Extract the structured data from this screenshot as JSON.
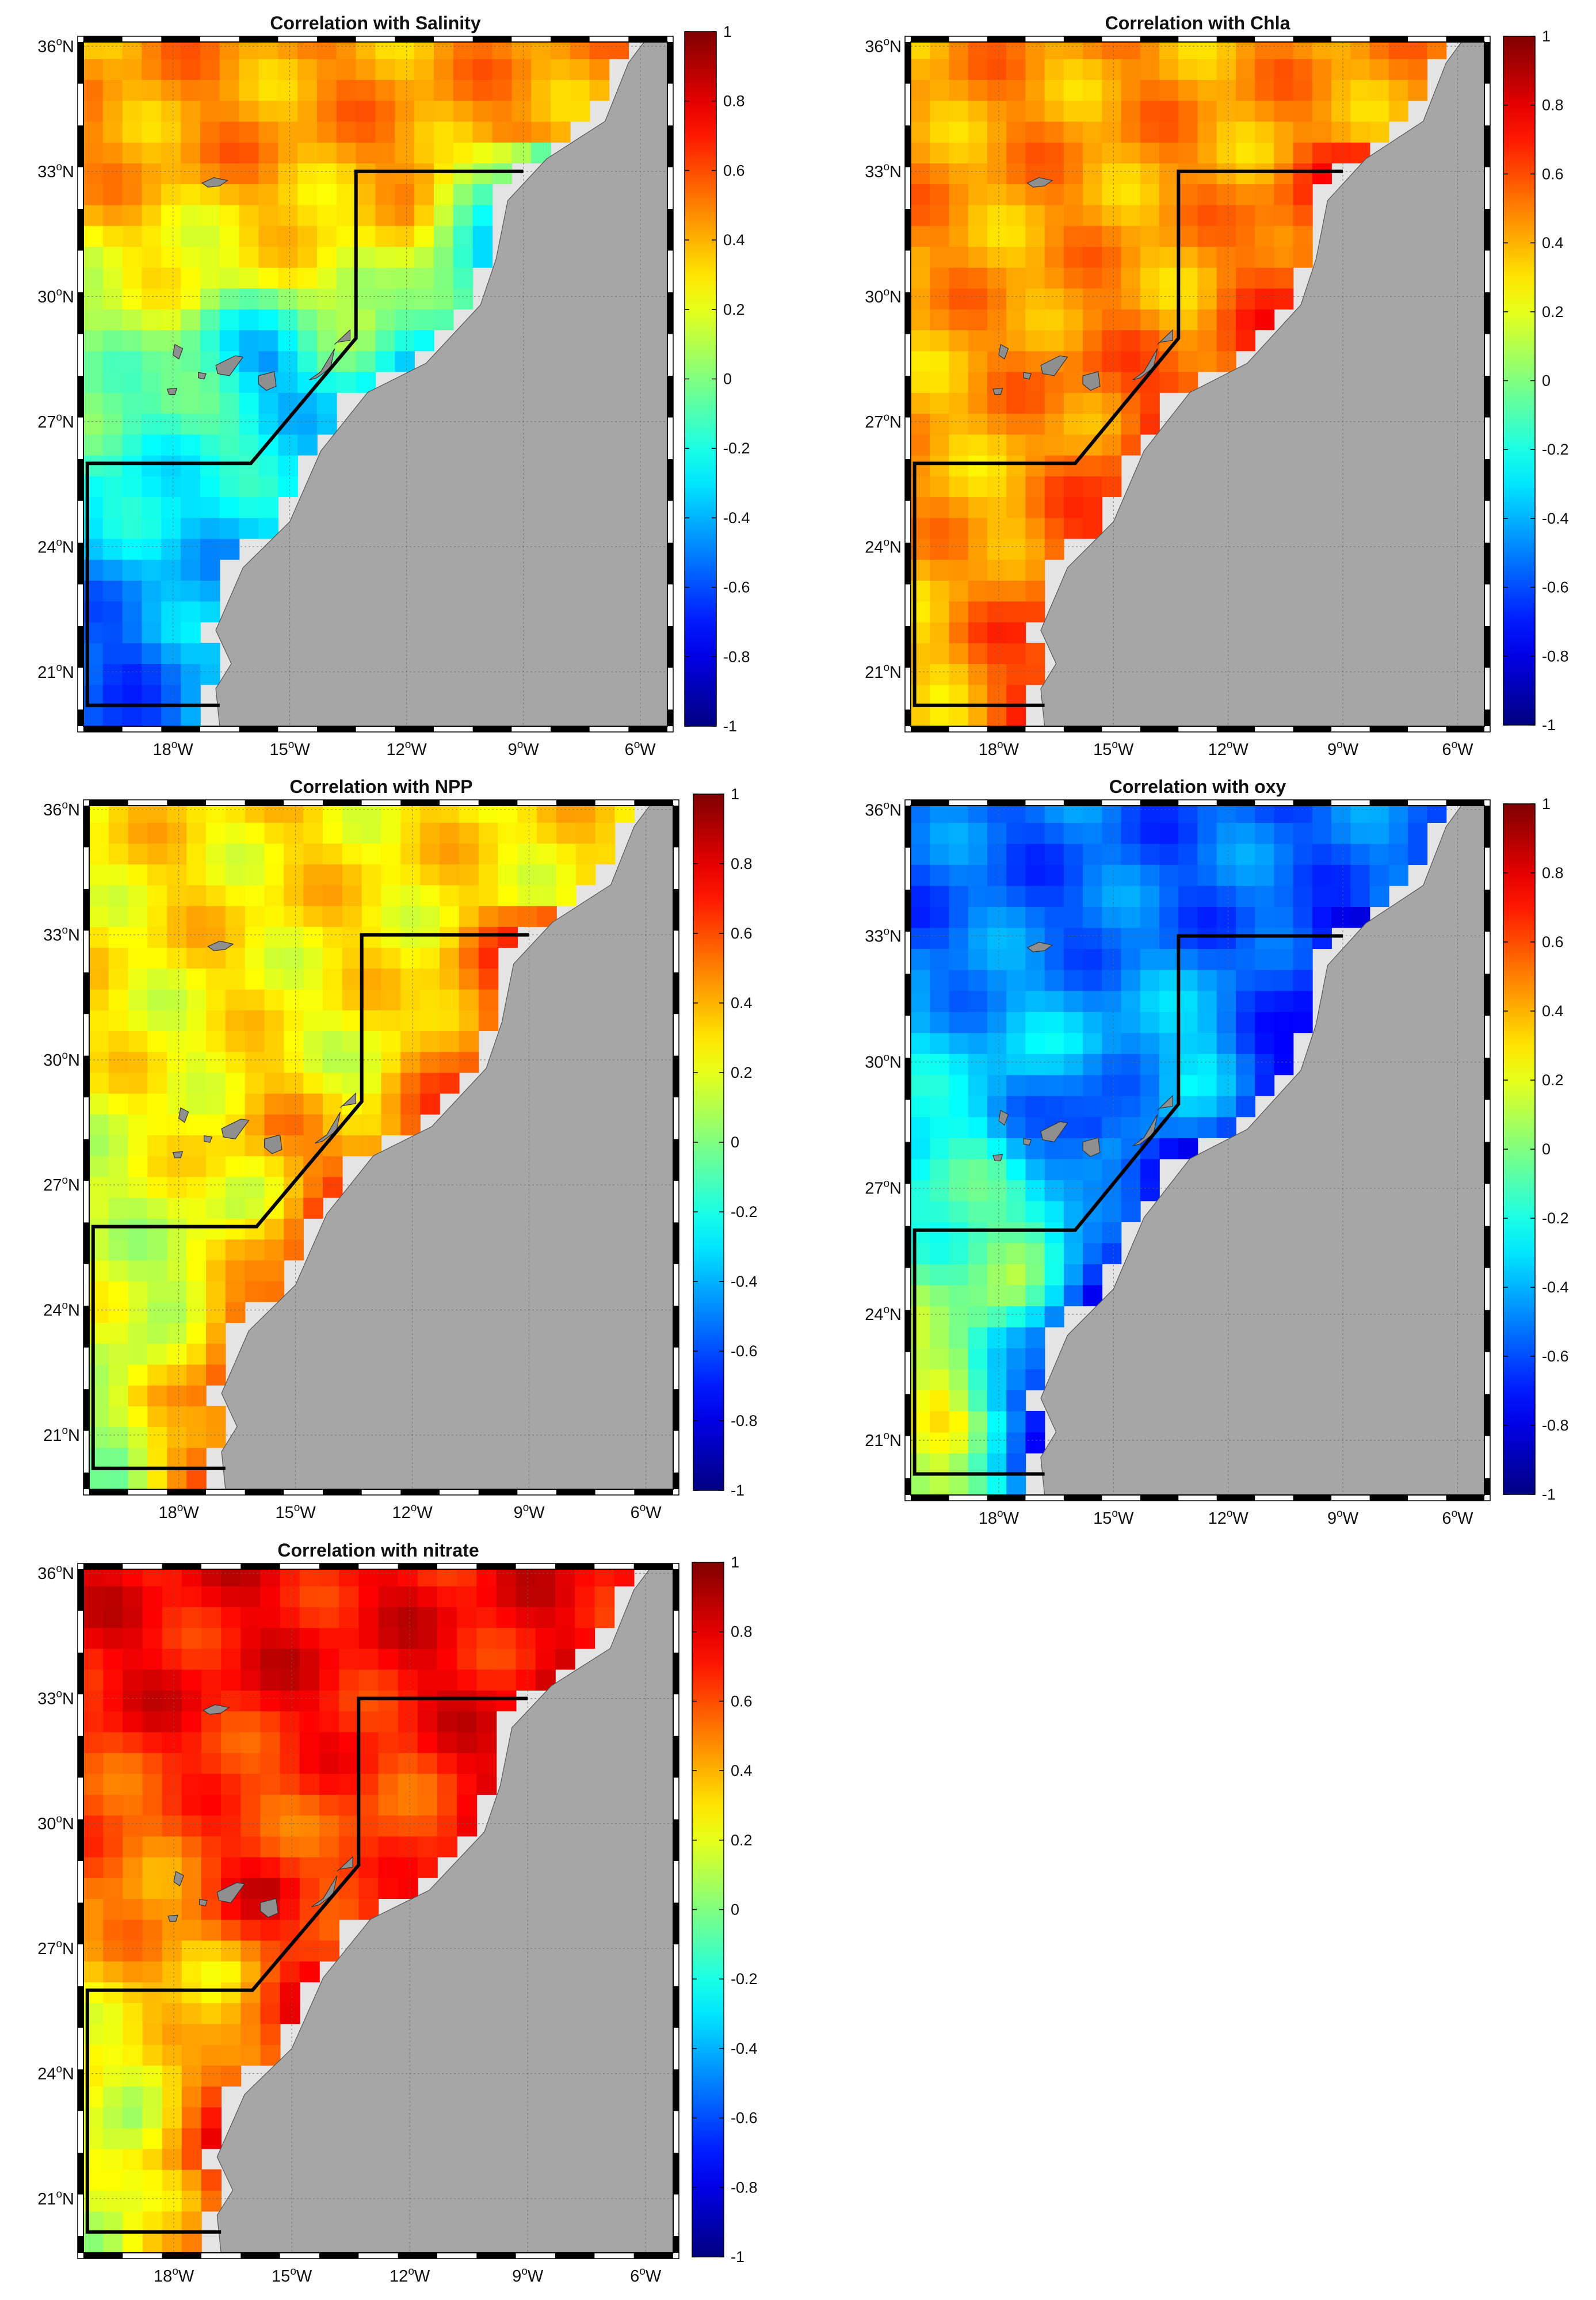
{
  "figure": {
    "panels": [
      {
        "id": "salinity",
        "title": "Correlation with Salinity",
        "pattern": {
          "north_value": 0.45,
          "south_value": -0.6,
          "coastal_value": -0.35,
          "islands_value": -0.55
        }
      },
      {
        "id": "chla",
        "title": "Correlation with Chla",
        "pattern": {
          "north_value": 0.45,
          "south_value": 0.4,
          "coastal_value": 0.7,
          "islands_value": 0.6
        }
      },
      {
        "id": "npp",
        "title": "Correlation with NPP",
        "pattern": {
          "north_value": 0.3,
          "south_value": 0.1,
          "coastal_value": 0.7,
          "islands_value": 0.5
        }
      },
      {
        "id": "oxy",
        "title": "Correlation with oxy",
        "pattern": {
          "north_value": -0.55,
          "south_value": 0.2,
          "coastal_value": -0.85,
          "islands_value": -0.9
        }
      },
      {
        "id": "nitrate",
        "title": "Correlation with nitrate",
        "pattern": {
          "north_value": 0.75,
          "south_value": 0.1,
          "coastal_value": 0.8,
          "islands_value": 0.85
        }
      }
    ],
    "lat_ticks": [
      "36",
      "33",
      "30",
      "27",
      "24",
      "21"
    ],
    "lat_suffix": "N",
    "lon_ticks": [
      "18",
      "15",
      "12",
      "9",
      "6"
    ],
    "lon_suffix": "W",
    "degree_symbol": "o",
    "colorbar_ticks": [
      "1",
      "0.8",
      "0.6",
      "0.4",
      "0.2",
      "0",
      "-0.2",
      "-0.4",
      "-0.6",
      "-0.8",
      "-1"
    ],
    "colorbar_range": [
      -1,
      1
    ],
    "colormap": "jet",
    "map_extent": {
      "lon": [
        -20.3,
        -5.3
      ],
      "lat": [
        19.7,
        36.1
      ]
    },
    "land_color": "#a6a6a6",
    "nodata_color": "#e4e4e4",
    "boundary_color": "#000000",
    "boundary_polygon_lonlat": [
      [
        -20.2,
        20.2
      ],
      [
        -20.2,
        26
      ],
      [
        -16,
        26
      ],
      [
        -13.3,
        29
      ],
      [
        -13.3,
        33
      ],
      [
        -9,
        33
      ]
    ]
  }
}
